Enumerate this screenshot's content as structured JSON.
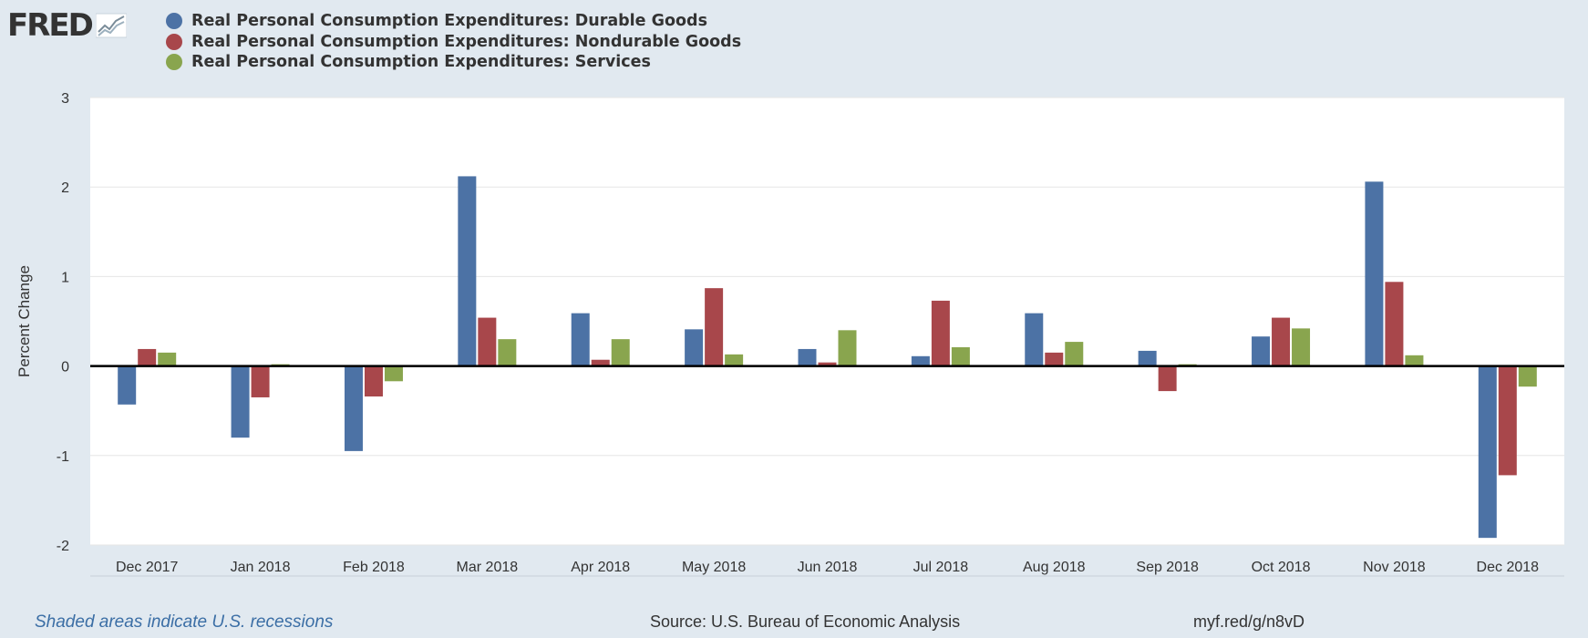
{
  "logo": {
    "text": "FRED",
    "icon": "line-graph-icon"
  },
  "legend": [
    {
      "label": "Real Personal Consumption Expenditures: Durable Goods",
      "color": "#4c72a5"
    },
    {
      "label": "Real Personal Consumption Expenditures: Nondurable Goods",
      "color": "#a8474b"
    },
    {
      "label": "Real Personal Consumption Expenditures: Services",
      "color": "#89a54e"
    }
  ],
  "footer": {
    "note": "Shaded areas indicate U.S. recessions",
    "source": "Source: U.S. Bureau of Economic Analysis",
    "url": "myf.red/g/n8vD"
  },
  "chart_data": {
    "type": "bar",
    "ylabel": "Percent Change",
    "xlabel": "",
    "ylim": [
      -2,
      3
    ],
    "yticks": [
      3,
      2,
      1,
      0,
      -1,
      -2
    ],
    "grid": true,
    "legend_position": "top-left",
    "categories": [
      "Dec 2017",
      "Jan 2018",
      "Feb 2018",
      "Mar 2018",
      "Apr 2018",
      "May 2018",
      "Jun 2018",
      "Jul 2018",
      "Aug 2018",
      "Sep 2018",
      "Oct 2018",
      "Nov 2018",
      "Dec 2018"
    ],
    "series": [
      {
        "name": "Real Personal Consumption Expenditures: Durable Goods",
        "color": "#4c72a5",
        "values": [
          -0.43,
          -0.8,
          -0.95,
          2.12,
          0.59,
          0.41,
          0.19,
          0.11,
          0.59,
          0.17,
          0.33,
          2.06,
          -1.92
        ]
      },
      {
        "name": "Real Personal Consumption Expenditures: Nondurable Goods",
        "color": "#a8474b",
        "values": [
          0.19,
          -0.35,
          -0.34,
          0.54,
          0.07,
          0.87,
          0.04,
          0.73,
          0.15,
          -0.28,
          0.54,
          0.94,
          -1.22
        ]
      },
      {
        "name": "Real Personal Consumption Expenditures: Services",
        "color": "#89a54e",
        "values": [
          0.15,
          0.02,
          -0.17,
          0.3,
          0.3,
          0.13,
          0.4,
          0.21,
          0.27,
          0.02,
          0.42,
          0.12,
          -0.23
        ]
      }
    ]
  }
}
